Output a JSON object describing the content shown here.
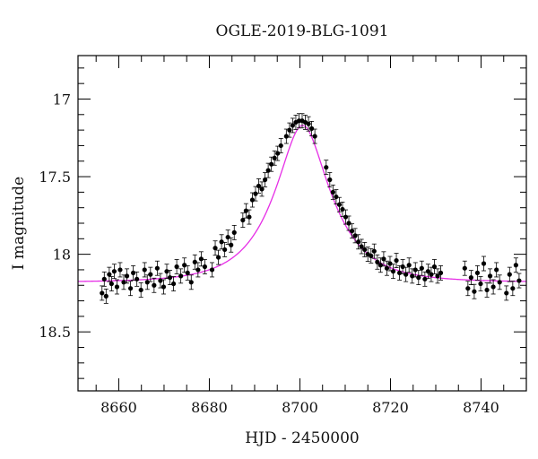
{
  "chart_data": {
    "type": "scatter",
    "title": "OGLE-2019-BLG-1091",
    "xlabel": "HJD - 2450000",
    "ylabel": "I magnitude",
    "xlim": [
      8651,
      8750
    ],
    "ylim": [
      18.88,
      16.72
    ],
    "y_inverted": true,
    "x_ticks": [
      8660,
      8680,
      8700,
      8720,
      8740
    ],
    "y_ticks": [
      17,
      17.5,
      18,
      18.5
    ],
    "x_minor_step": 5,
    "y_minor_step": 0.1,
    "grid": false,
    "legend": "none",
    "model_color": "#e62ee6",
    "point_color": "#000000",
    "model": {
      "t0": 8700.6,
      "tE": 11.5,
      "u0": 0.42,
      "base_mag": 18.18
    },
    "observations": [
      {
        "x": 8656.3,
        "y": 18.25
      },
      {
        "x": 8656.8,
        "y": 18.16
      },
      {
        "x": 8657.2,
        "y": 18.27
      },
      {
        "x": 8657.9,
        "y": 18.13
      },
      {
        "x": 8658.4,
        "y": 18.19
      },
      {
        "x": 8659.0,
        "y": 18.11
      },
      {
        "x": 8659.6,
        "y": 18.21
      },
      {
        "x": 8660.3,
        "y": 18.1
      },
      {
        "x": 8661.1,
        "y": 18.18
      },
      {
        "x": 8661.8,
        "y": 18.14
      },
      {
        "x": 8662.6,
        "y": 18.22
      },
      {
        "x": 8663.2,
        "y": 18.12
      },
      {
        "x": 8664.0,
        "y": 18.16
      },
      {
        "x": 8664.9,
        "y": 18.23
      },
      {
        "x": 8665.7,
        "y": 18.1
      },
      {
        "x": 8666.3,
        "y": 18.18
      },
      {
        "x": 8667.0,
        "y": 18.13
      },
      {
        "x": 8667.8,
        "y": 18.2
      },
      {
        "x": 8668.5,
        "y": 18.09
      },
      {
        "x": 8669.2,
        "y": 18.17
      },
      {
        "x": 8669.9,
        "y": 18.21
      },
      {
        "x": 8670.6,
        "y": 18.11
      },
      {
        "x": 8671.3,
        "y": 18.15
      },
      {
        "x": 8672.1,
        "y": 18.19
      },
      {
        "x": 8672.8,
        "y": 18.08
      },
      {
        "x": 8673.7,
        "y": 18.14
      },
      {
        "x": 8674.5,
        "y": 18.07
      },
      {
        "x": 8675.2,
        "y": 18.12
      },
      {
        "x": 8676.0,
        "y": 18.18
      },
      {
        "x": 8676.8,
        "y": 18.05
      },
      {
        "x": 8677.5,
        "y": 18.1
      },
      {
        "x": 8678.2,
        "y": 18.03
      },
      {
        "x": 8679.0,
        "y": 18.08
      },
      {
        "x": 8680.6,
        "y": 18.1
      },
      {
        "x": 8681.3,
        "y": 17.96
      },
      {
        "x": 8682.0,
        "y": 18.02
      },
      {
        "x": 8682.7,
        "y": 17.92
      },
      {
        "x": 8683.4,
        "y": 17.97
      },
      {
        "x": 8684.1,
        "y": 17.89
      },
      {
        "x": 8684.8,
        "y": 17.94
      },
      {
        "x": 8685.5,
        "y": 17.86
      },
      {
        "x": 8687.4,
        "y": 17.78
      },
      {
        "x": 8688.1,
        "y": 17.72
      },
      {
        "x": 8688.8,
        "y": 17.76
      },
      {
        "x": 8689.5,
        "y": 17.65
      },
      {
        "x": 8690.2,
        "y": 17.61
      },
      {
        "x": 8690.9,
        "y": 17.56
      },
      {
        "x": 8691.6,
        "y": 17.58
      },
      {
        "x": 8692.3,
        "y": 17.52
      },
      {
        "x": 8693.0,
        "y": 17.46
      },
      {
        "x": 8693.7,
        "y": 17.42
      },
      {
        "x": 8694.4,
        "y": 17.38
      },
      {
        "x": 8695.1,
        "y": 17.35
      },
      {
        "x": 8695.8,
        "y": 17.3
      },
      {
        "x": 8697.0,
        "y": 17.24
      },
      {
        "x": 8697.7,
        "y": 17.2
      },
      {
        "x": 8698.4,
        "y": 17.17
      },
      {
        "x": 8699.1,
        "y": 17.15
      },
      {
        "x": 8699.8,
        "y": 17.14
      },
      {
        "x": 8700.5,
        "y": 17.14
      },
      {
        "x": 8701.2,
        "y": 17.15
      },
      {
        "x": 8701.9,
        "y": 17.16
      },
      {
        "x": 8702.6,
        "y": 17.19
      },
      {
        "x": 8703.3,
        "y": 17.24
      },
      {
        "x": 8705.8,
        "y": 17.44
      },
      {
        "x": 8706.6,
        "y": 17.52
      },
      {
        "x": 8707.3,
        "y": 17.6
      },
      {
        "x": 8708.0,
        "y": 17.63
      },
      {
        "x": 8708.7,
        "y": 17.68
      },
      {
        "x": 8709.4,
        "y": 17.71
      },
      {
        "x": 8710.1,
        "y": 17.76
      },
      {
        "x": 8710.8,
        "y": 17.8
      },
      {
        "x": 8711.5,
        "y": 17.85
      },
      {
        "x": 8712.2,
        "y": 17.88
      },
      {
        "x": 8712.9,
        "y": 17.92
      },
      {
        "x": 8713.6,
        "y": 17.95
      },
      {
        "x": 8714.3,
        "y": 17.97
      },
      {
        "x": 8715.0,
        "y": 18.0
      },
      {
        "x": 8715.7,
        "y": 18.01
      },
      {
        "x": 8716.4,
        "y": 17.98
      },
      {
        "x": 8717.1,
        "y": 18.05
      },
      {
        "x": 8717.8,
        "y": 18.07
      },
      {
        "x": 8718.5,
        "y": 18.03
      },
      {
        "x": 8719.2,
        "y": 18.09
      },
      {
        "x": 8719.9,
        "y": 18.06
      },
      {
        "x": 8720.6,
        "y": 18.11
      },
      {
        "x": 8721.3,
        "y": 18.04
      },
      {
        "x": 8722.0,
        "y": 18.12
      },
      {
        "x": 8722.7,
        "y": 18.08
      },
      {
        "x": 8723.4,
        "y": 18.13
      },
      {
        "x": 8724.1,
        "y": 18.07
      },
      {
        "x": 8724.8,
        "y": 18.14
      },
      {
        "x": 8725.5,
        "y": 18.1
      },
      {
        "x": 8726.2,
        "y": 18.15
      },
      {
        "x": 8726.9,
        "y": 18.09
      },
      {
        "x": 8727.6,
        "y": 18.16
      },
      {
        "x": 8728.3,
        "y": 18.11
      },
      {
        "x": 8729.0,
        "y": 18.13
      },
      {
        "x": 8729.7,
        "y": 18.08
      },
      {
        "x": 8730.4,
        "y": 18.14
      },
      {
        "x": 8731.1,
        "y": 18.12
      },
      {
        "x": 8736.4,
        "y": 18.09
      },
      {
        "x": 8737.1,
        "y": 18.22
      },
      {
        "x": 8737.8,
        "y": 18.15
      },
      {
        "x": 8738.5,
        "y": 18.24
      },
      {
        "x": 8739.2,
        "y": 18.12
      },
      {
        "x": 8739.9,
        "y": 18.19
      },
      {
        "x": 8740.6,
        "y": 18.06
      },
      {
        "x": 8741.3,
        "y": 18.23
      },
      {
        "x": 8742.0,
        "y": 18.14
      },
      {
        "x": 8742.7,
        "y": 18.21
      },
      {
        "x": 8743.4,
        "y": 18.1
      },
      {
        "x": 8744.1,
        "y": 18.18
      },
      {
        "x": 8745.6,
        "y": 18.25
      },
      {
        "x": 8746.3,
        "y": 18.13
      },
      {
        "x": 8747.0,
        "y": 18.22
      },
      {
        "x": 8747.7,
        "y": 18.07
      },
      {
        "x": 8748.4,
        "y": 18.17
      }
    ]
  }
}
